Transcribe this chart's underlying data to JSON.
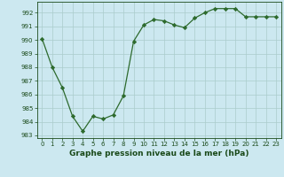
{
  "x": [
    0,
    1,
    2,
    3,
    4,
    5,
    6,
    7,
    8,
    9,
    10,
    11,
    12,
    13,
    14,
    15,
    16,
    17,
    18,
    19,
    20,
    21,
    22,
    23
  ],
  "y": [
    990.1,
    988.0,
    986.5,
    984.4,
    983.3,
    984.4,
    984.2,
    984.5,
    985.9,
    989.9,
    991.1,
    991.5,
    991.4,
    991.1,
    990.9,
    991.6,
    992.0,
    992.3,
    992.3,
    992.3,
    991.7,
    991.7,
    991.7,
    991.7
  ],
  "ylim": [
    982.8,
    992.8
  ],
  "xlim": [
    -0.5,
    23.5
  ],
  "yticks": [
    983,
    984,
    985,
    986,
    987,
    988,
    989,
    990,
    991,
    992
  ],
  "xticks": [
    0,
    1,
    2,
    3,
    4,
    5,
    6,
    7,
    8,
    9,
    10,
    11,
    12,
    13,
    14,
    15,
    16,
    17,
    18,
    19,
    20,
    21,
    22,
    23
  ],
  "xlabel": "Graphe pression niveau de la mer (hPa)",
  "line_color": "#2d6a2d",
  "marker_color": "#2d6a2d",
  "bg_color": "#cce8f0",
  "grid_color": "#aacccc",
  "title_color": "#1a4a1a",
  "label_color": "#1a4a1a"
}
